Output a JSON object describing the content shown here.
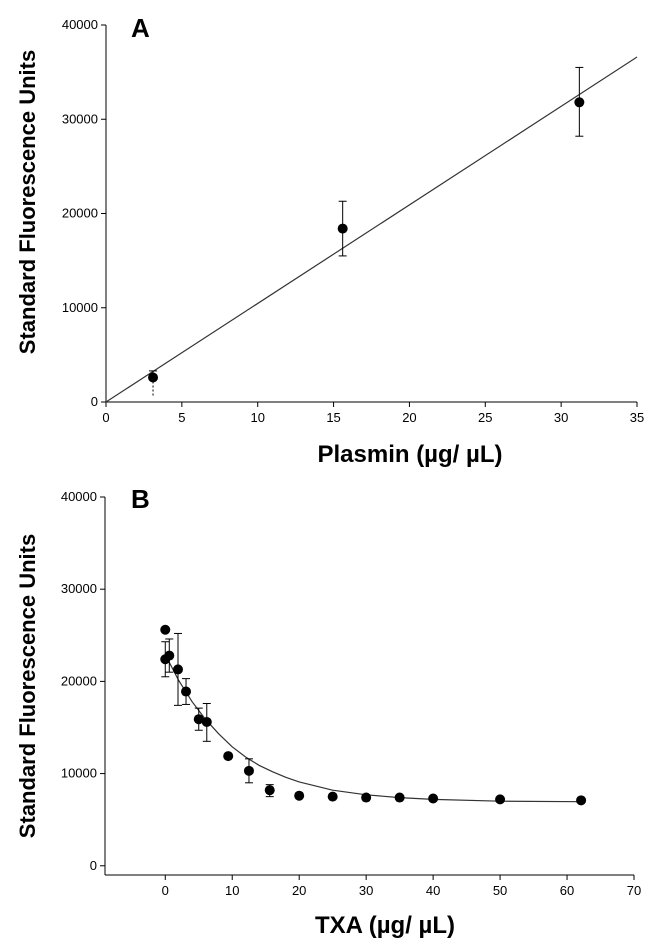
{
  "chart_data": [
    {
      "type": "scatter",
      "panel_label": "A",
      "xlabel": "Plasmin (µg/ µL)",
      "ylabel": "Standard Fluorescence Units",
      "xlim": [
        0,
        35
      ],
      "ylim": [
        0,
        40000
      ],
      "xticks": [
        0,
        5,
        10,
        15,
        20,
        25,
        30,
        35
      ],
      "yticks": [
        0,
        10000,
        20000,
        30000,
        40000
      ],
      "grid": false,
      "series": [
        {
          "x": [
            3.1,
            15.6,
            31.2
          ],
          "y": [
            2600,
            18400,
            31800
          ],
          "err_upper": [
            3300,
            21300,
            35500
          ],
          "err_lower": [
            500,
            15500,
            28200
          ],
          "err_lower_dashed": [
            true,
            false,
            false
          ]
        }
      ],
      "fit_line": {
        "type": "linear",
        "x": [
          0,
          35
        ],
        "y": [
          0,
          36600
        ]
      }
    },
    {
      "type": "scatter",
      "panel_label": "B",
      "xlabel": "TXA (µg/ µL)",
      "ylabel": "Standard Fluorescence Units",
      "xlim": [
        -9,
        70
      ],
      "ylim": [
        -1000,
        40000
      ],
      "xticks": [
        0,
        10,
        20,
        30,
        40,
        50,
        60,
        70
      ],
      "yticks": [
        0,
        10000,
        20000,
        30000,
        40000
      ],
      "grid": false,
      "series": [
        {
          "x": [
            0,
            0,
            0.6,
            1.9,
            3.1,
            5.0,
            6.2,
            9.4,
            12.5,
            15.6,
            20,
            25,
            30,
            35,
            40,
            50,
            62.1
          ],
          "y": [
            25600,
            22400,
            22800,
            21300,
            18900,
            15900,
            15600,
            11900,
            10300,
            8200,
            7600,
            7500,
            7400,
            7400,
            7300,
            7200,
            7100
          ],
          "err_upper": [
            null,
            24300,
            24600,
            25200,
            20300,
            17100,
            17600,
            null,
            11600,
            8800,
            null,
            null,
            null,
            null,
            null,
            null,
            null
          ],
          "err_lower": [
            null,
            20500,
            21000,
            17400,
            17500,
            14700,
            13500,
            null,
            9000,
            7500,
            null,
            null,
            null,
            null,
            null,
            null,
            null
          ]
        }
      ],
      "fit_curve": {
        "type": "exponential_decay",
        "x": [
          0,
          2,
          4,
          6,
          8,
          10,
          12,
          14,
          16,
          18,
          20,
          25,
          30,
          35,
          40,
          50,
          62.1
        ],
        "y": [
          22900,
          20100,
          17800,
          15900,
          14300,
          12900,
          11800,
          10900,
          10200,
          9600,
          9100,
          8200,
          7700,
          7400,
          7200,
          7000,
          6950
        ]
      }
    }
  ]
}
